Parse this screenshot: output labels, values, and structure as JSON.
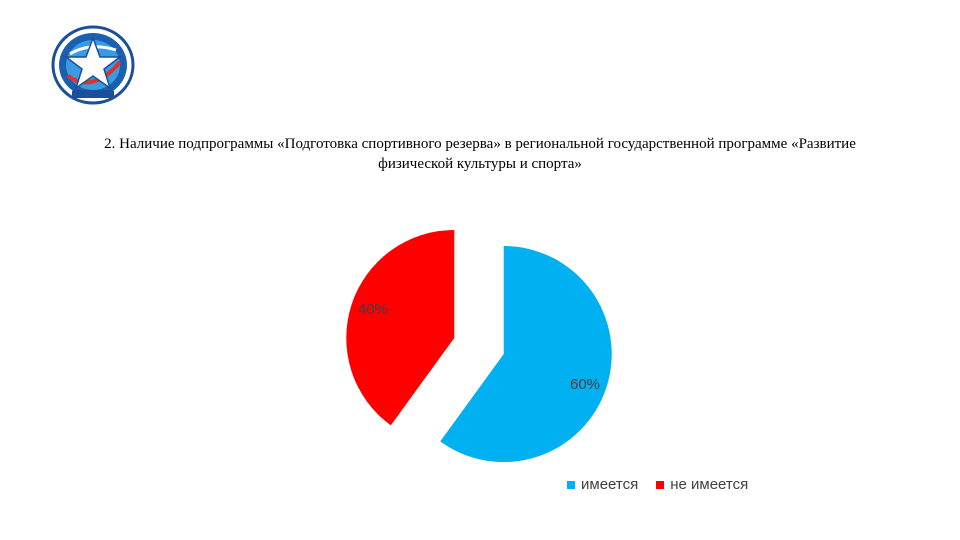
{
  "heading": {
    "line1": "2. Наличие подпрограммы «Подготовка спортивного резерва» в региональной государственной программе «Развитие",
    "line2": "физической культуры и спорта»"
  },
  "logo": {
    "icon": "star-emblem-logo",
    "colors": {
      "ring": "#1b4f9c",
      "inner": "#2f8fd8",
      "star": "#ffffff",
      "accent": "#e0312f"
    }
  },
  "chart_data": {
    "type": "pie",
    "exploded": true,
    "slices": [
      {
        "label": "имеется",
        "value": 60,
        "value_label": "60%",
        "color": "#00b0f0"
      },
      {
        "label": "не имеется",
        "value": 40,
        "value_label": "40%",
        "color": "#ff0000"
      }
    ],
    "legend": {
      "placement": "bottom-right",
      "entries": [
        "имеется",
        "не имеется"
      ]
    }
  }
}
